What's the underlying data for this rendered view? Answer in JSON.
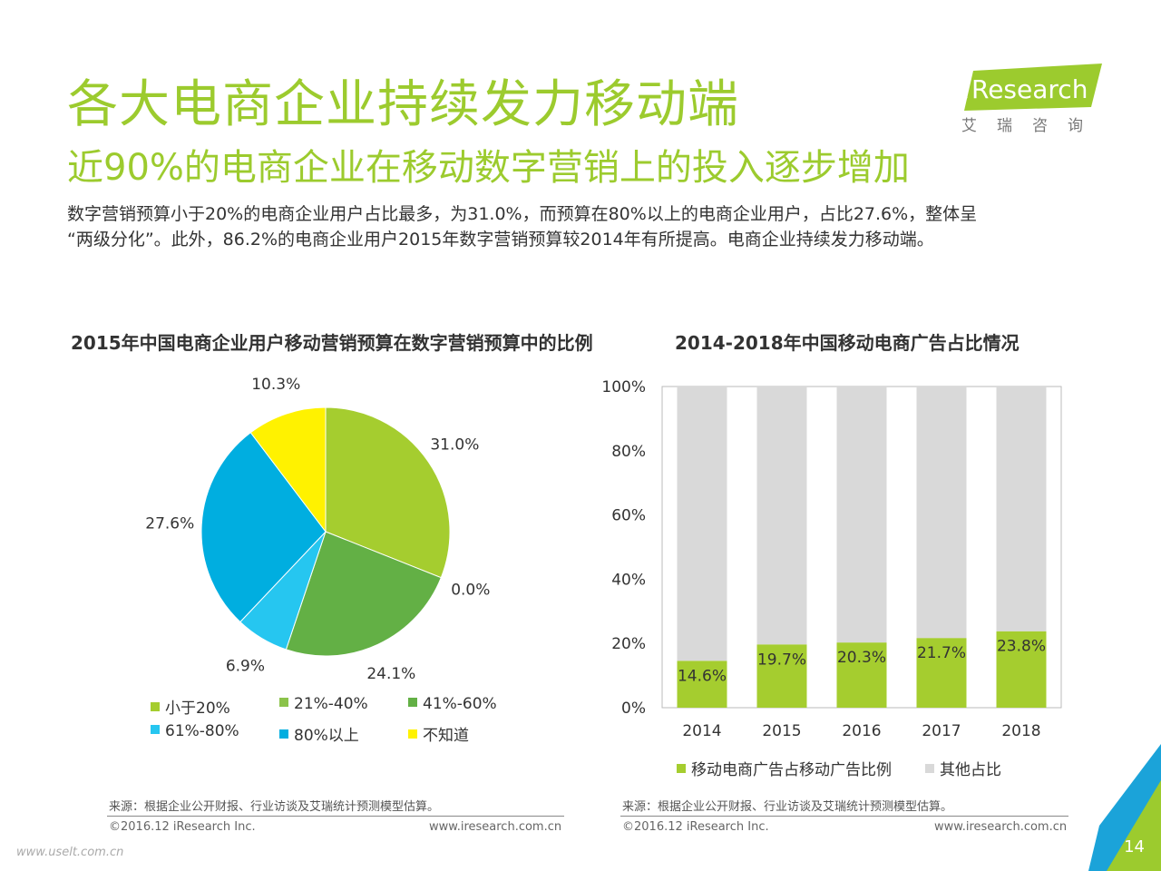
{
  "header": {
    "title": "各大电商企业持续发力移动端",
    "subtitle": "近90%的电商企业在移动数字营销上的投入逐步增加",
    "body_line1": "数字营销预算小于20%的电商企业用户占比最多，为31.0%，而预算在80%以上的电商企业用户，占比27.6%，整体呈",
    "body_line2": "“两级分化”。此外，86.2%的电商企业用户2015年数字营销预算较2014年有所提高。电商企业持续发力移动端。"
  },
  "logo": {
    "brand_i": "i",
    "brand_rest": "Research",
    "cn": "艾瑞咨询"
  },
  "chart_data": [
    {
      "type": "pie",
      "title": "2015年中国电商企业用户移动营销预算在数字营销预算中的比例",
      "slices": [
        {
          "label": "小于20%",
          "value": 31.0,
          "display": "31.0%",
          "color": "#a5cd2f"
        },
        {
          "label": "21%-40%",
          "value": 0.0,
          "display": "0.0%",
          "color": "#8bc34a"
        },
        {
          "label": "41%-60%",
          "value": 24.1,
          "display": "24.1%",
          "color": "#63b045"
        },
        {
          "label": "61%-80%",
          "value": 6.9,
          "display": "6.9%",
          "color": "#26c6f0"
        },
        {
          "label": "80%以上",
          "value": 27.6,
          "display": "27.6%",
          "color": "#00aee0"
        },
        {
          "label": "不知道",
          "value": 10.3,
          "display": "10.3%",
          "color": "#fff200"
        }
      ]
    },
    {
      "type": "bar",
      "stacked": true,
      "title": "2014-2018年中国移动电商广告占比情况",
      "categories": [
        "2014",
        "2015",
        "2016",
        "2017",
        "2018"
      ],
      "yticks": [
        "0%",
        "20%",
        "40%",
        "60%",
        "80%",
        "100%"
      ],
      "ylim": [
        0,
        100
      ],
      "series": [
        {
          "name": "移动电商广告占移动广告比例",
          "values": [
            14.6,
            19.7,
            20.3,
            21.7,
            23.8
          ],
          "labels": [
            "14.6%",
            "19.7%",
            "20.3%",
            "21.7%",
            "23.8%"
          ],
          "color": "#a5cd2f"
        },
        {
          "name": "其他占比",
          "values": [
            85.4,
            80.3,
            79.7,
            78.3,
            76.2
          ],
          "color": "#d9d9d9"
        }
      ]
    }
  ],
  "footer": {
    "source": "来源：根据企业公开财报、行业访谈及艾瑞统计预测模型估算。",
    "copyright": "©2016.12 iResearch Inc.",
    "site": "www.iresearch.com.cn",
    "page": "14",
    "watermark": "www.uselt.com.cn"
  },
  "colors": {
    "accent": "#9ccb2e",
    "corner_blue": "#1ba3d9",
    "corner_green": "#9ccb2e"
  }
}
